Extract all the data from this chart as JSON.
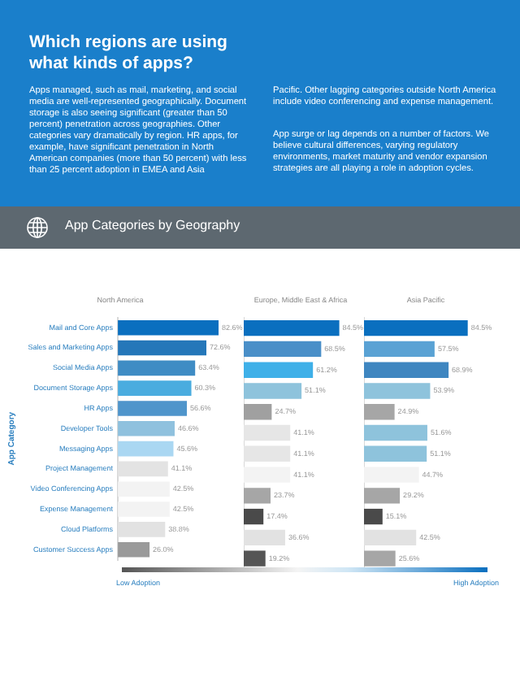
{
  "chart_data": [
    {
      "type": "bar",
      "orientation": "horizontal",
      "title": "North America",
      "ylabel": "App Category",
      "tick_labels": "y",
      "annotations": [
        "Which regions are using what kinds of apps?",
        "Apps managed, such as mail, marketing, and social media are well-represented geographically. Document storage is also seeing significant (greater than 50 percent) penetration across geographies. Other categories vary dramatically by region. HR apps, for example, have significant penetration in North American companies (more than 50 percent) with less than 25 percent adoption in EMEA and Asia",
        "Pacific. Other lagging categories outside North America include video conferencing and expense management.",
        "App surge or lag depends on a number of factors. We believe cultural differences, varying regulatory environments, market maturity and vendor expansion strategies are all playing a role in adoption cycles.",
        "App Categories by Geography",
        "Low Adoption",
        "High Adoption"
      ],
      "categories": [
        "Mail and Core Apps",
        "Sales and Marketing Apps",
        "Social Media Apps",
        "Document Storage Apps",
        "HR Apps",
        "Developer Tools",
        "Messaging Apps",
        "Project Management",
        "Video Conferencing Apps",
        "Expense Management",
        "Cloud Platforms",
        "Customer Success Apps"
      ],
      "values": [
        82.6,
        72.6,
        63.4,
        60.3,
        56.6,
        46.6,
        45.6,
        41.1,
        42.5,
        42.5,
        38.8,
        26.0
      ],
      "value_labels": [
        "82.6%",
        "72.6%",
        "63.4%",
        "60.3%",
        "56.6%",
        "46.6%",
        "45.6%",
        "41.1%",
        "42.5%",
        "42.5%",
        "38.8%",
        "26.0%"
      ],
      "colors": [
        "#0a6fbf",
        "#2577b9",
        "#3f8cc4",
        "#4aacdf",
        "#4f95cb",
        "#8fc1de",
        "#aad7f2",
        "#e3e3e3",
        "#f3f3f3",
        "#f3f3f3",
        "#e2e2e2",
        "#9a9a9a"
      ]
    },
    {
      "type": "bar",
      "orientation": "horizontal",
      "title": "Europe, Middle East & Africa",
      "tick_labels": false,
      "categories": [
        null,
        null,
        null,
        null,
        null,
        null,
        null,
        null,
        null,
        null,
        null,
        null
      ],
      "values": [
        84.5,
        68.5,
        61.2,
        51.1,
        24.7,
        41.1,
        41.1,
        41.1,
        23.7,
        17.4,
        36.6,
        19.2
      ],
      "value_labels": [
        "84.5%",
        "68.5%",
        "61.2%",
        "51.1%",
        "24.7%",
        "41.1%",
        "41.1%",
        "41.1%",
        "23.7%",
        "17.4%",
        "36.6%",
        "19.2%"
      ],
      "colors": [
        "#0a6fbf",
        "#4a8fc8",
        "#3fb0e8",
        "#8ec3dc",
        "#a0a0a0",
        "#e6e6e6",
        "#e6e6e6",
        "#f3f3f3",
        "#a6a6a6",
        "#4a4a4a",
        "#e2e2e2",
        "#555555"
      ]
    },
    {
      "type": "bar",
      "orientation": "horizontal",
      "title": "Asia Pacific",
      "tick_labels": false,
      "categories": [
        null,
        null,
        null,
        null,
        null,
        null,
        null,
        null,
        null,
        null,
        null,
        null
      ],
      "values": [
        84.5,
        57.5,
        68.9,
        53.9,
        24.9,
        51.6,
        51.1,
        44.7,
        29.2,
        15.1,
        42.5,
        25.6
      ],
      "value_labels": [
        "84.5%",
        "57.5%",
        "68.9%",
        "53.9%",
        "24.9%",
        "51.6%",
        "51.1%",
        "44.7%",
        "29.2%",
        "15.1%",
        "42.5%",
        "25.6%"
      ],
      "colors": [
        "#0a6fbf",
        "#5aa2d4",
        "#3f86c0",
        "#8ec3dc",
        "#a6a6a6",
        "#8ec3dc",
        "#8ec3dc",
        "#f3f3f3",
        "#a6a6a6",
        "#4a4a4a",
        "#e2e2e2",
        "#a6a6a6"
      ]
    }
  ]
}
